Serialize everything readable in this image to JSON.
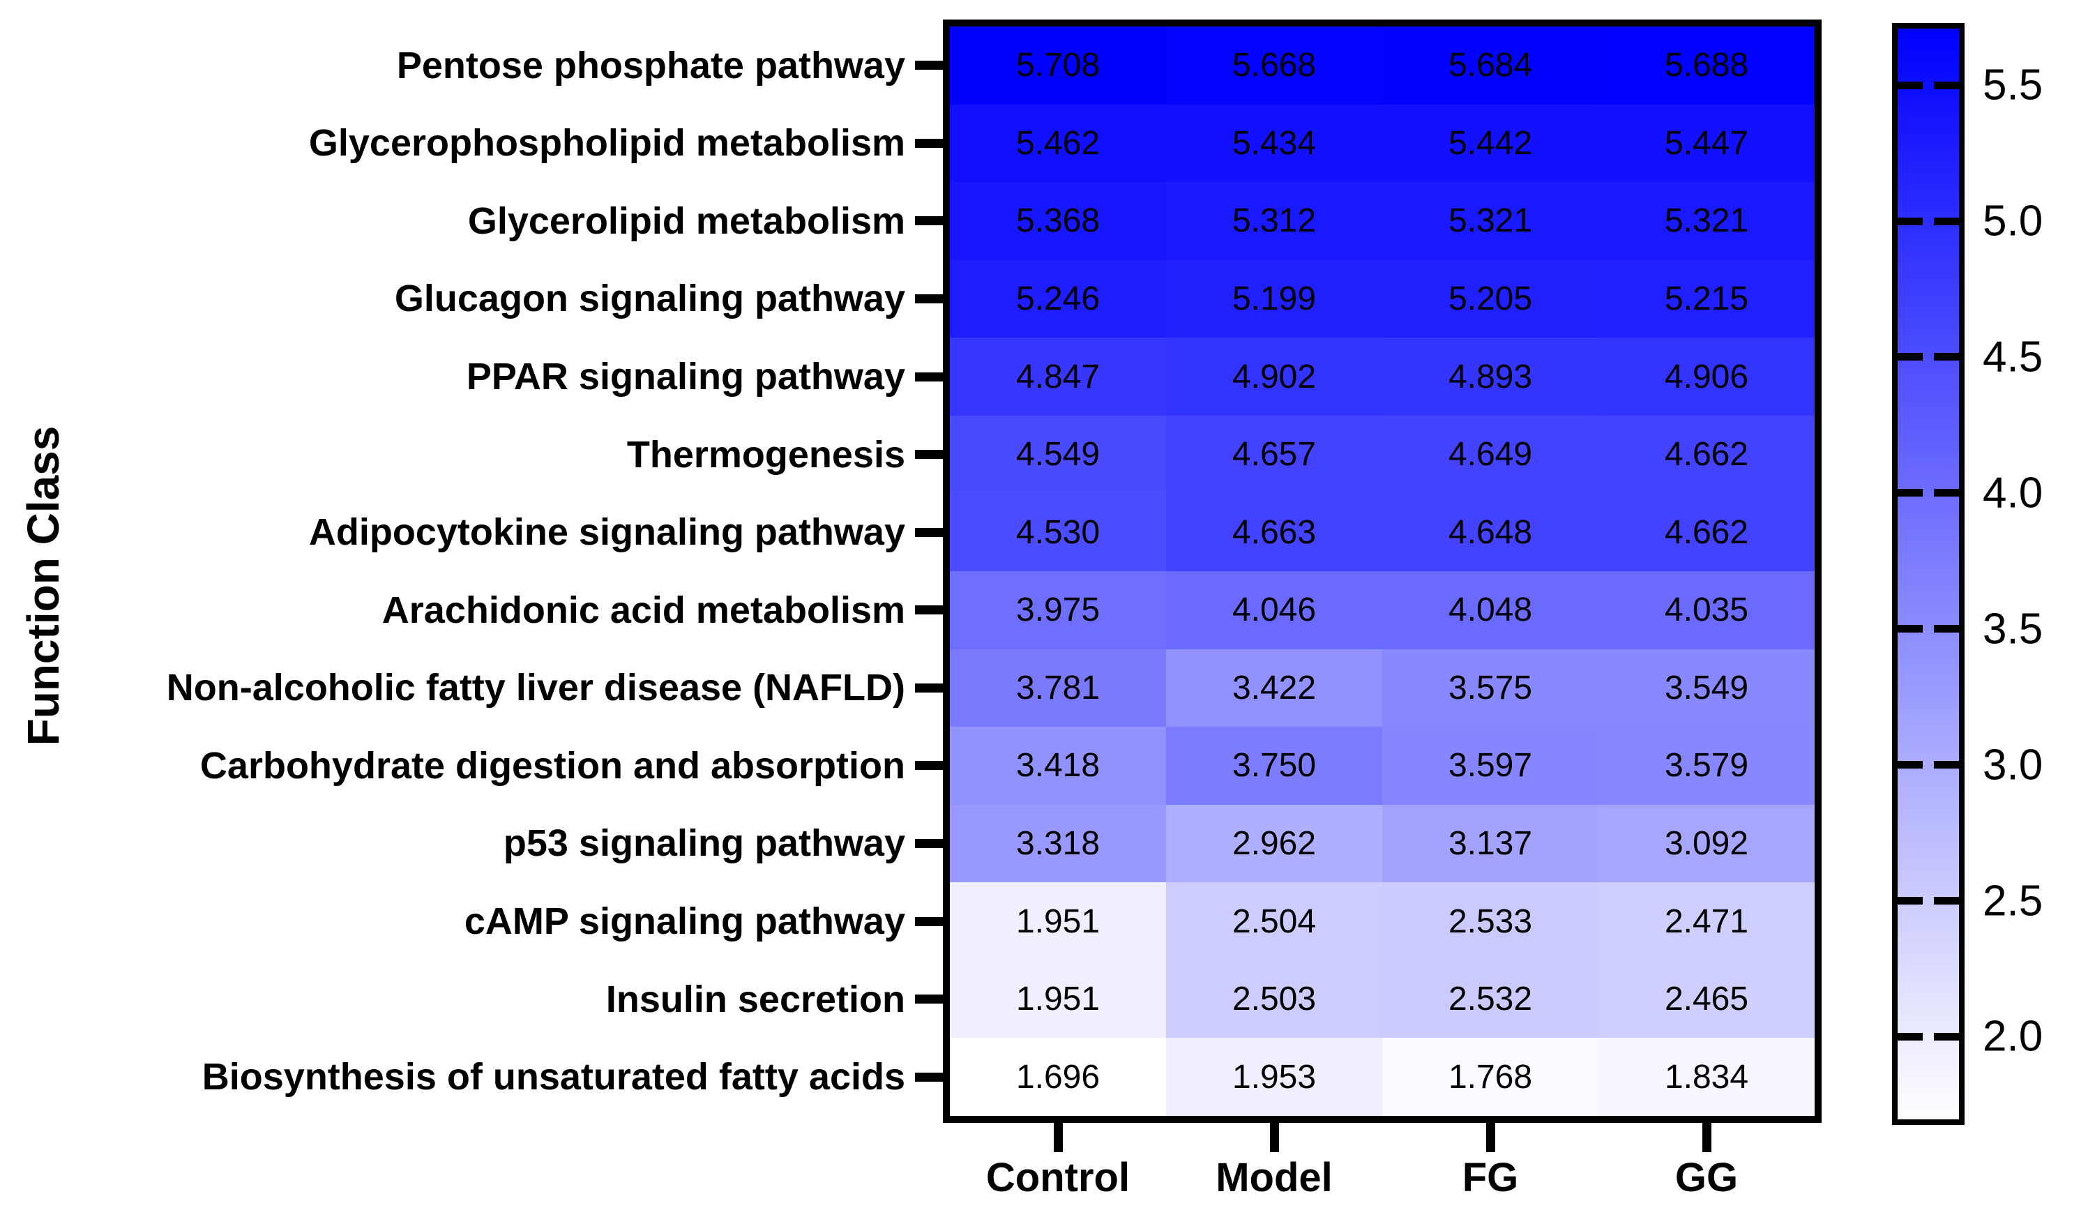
{
  "figure": {
    "background": "#ffffff",
    "axis_color": "#000000",
    "cell_text_color": "#000000"
  },
  "chart_data": {
    "type": "heatmap",
    "title": "",
    "xlabel": "",
    "ylabel": "Function Class",
    "legend_position": "right-colorbar",
    "grid": false,
    "columns": [
      "Control",
      "Model",
      "FG",
      "GG"
    ],
    "rows": [
      "Pentose phosphate pathway",
      "Glycerophospholipid metabolism",
      "Glycerolipid metabolism",
      "Glucagon signaling pathway",
      "PPAR signaling pathway",
      "Thermogenesis",
      "Adipocytokine signaling pathway",
      "Arachidonic acid metabolism",
      "Non-alcoholic fatty liver disease (NAFLD)",
      "Carbohydrate digestion and absorption",
      "p53 signaling pathway",
      "cAMP signaling pathway",
      "Insulin secretion",
      "Biosynthesis of unsaturated fatty acids"
    ],
    "values": [
      [
        5.708,
        5.668,
        5.684,
        5.688
      ],
      [
        5.462,
        5.434,
        5.442,
        5.447
      ],
      [
        5.368,
        5.312,
        5.321,
        5.321
      ],
      [
        5.246,
        5.199,
        5.205,
        5.215
      ],
      [
        4.847,
        4.902,
        4.893,
        4.906
      ],
      [
        4.549,
        4.657,
        4.649,
        4.662
      ],
      [
        4.53,
        4.663,
        4.648,
        4.662
      ],
      [
        3.975,
        4.046,
        4.048,
        4.035
      ],
      [
        3.781,
        3.422,
        3.575,
        3.549
      ],
      [
        3.418,
        3.75,
        3.597,
        3.579
      ],
      [
        3.318,
        2.962,
        3.137,
        3.092
      ],
      [
        1.951,
        2.504,
        2.533,
        2.471
      ],
      [
        1.951,
        2.503,
        2.532,
        2.465
      ],
      [
        1.696,
        1.953,
        1.768,
        1.834
      ]
    ],
    "value_format_decimals": 3,
    "colorbar": {
      "vmin": 1.696,
      "vmax": 5.708,
      "ticks": [
        5.5,
        5.0,
        4.5,
        4.0,
        3.5,
        3.0,
        2.5,
        2.0
      ],
      "tick_format_decimals": 1,
      "color_low": "#ffffff",
      "color_high": "#0000ff"
    }
  }
}
